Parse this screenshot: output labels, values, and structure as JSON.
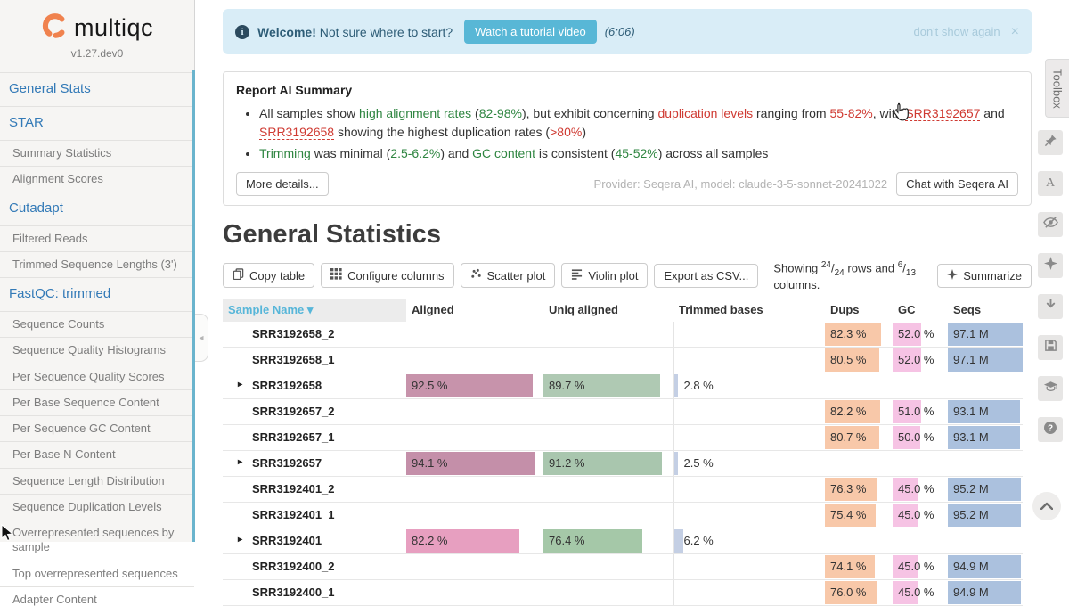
{
  "sidebar": {
    "logo_text": "multiqc",
    "version": "v1.27.dev0",
    "items": [
      {
        "label": "General Stats",
        "type": "section"
      },
      {
        "label": "STAR",
        "type": "section"
      },
      {
        "label": "Summary Statistics",
        "type": "item"
      },
      {
        "label": "Alignment Scores",
        "type": "item"
      },
      {
        "label": "Cutadapt",
        "type": "section"
      },
      {
        "label": "Filtered Reads",
        "type": "item"
      },
      {
        "label": "Trimmed Sequence Lengths (3')",
        "type": "item"
      },
      {
        "label": "FastQC: trimmed",
        "type": "section"
      },
      {
        "label": "Sequence Counts",
        "type": "item"
      },
      {
        "label": "Sequence Quality Histograms",
        "type": "item"
      },
      {
        "label": "Per Sequence Quality Scores",
        "type": "item"
      },
      {
        "label": "Per Base Sequence Content",
        "type": "item"
      },
      {
        "label": "Per Sequence GC Content",
        "type": "item"
      },
      {
        "label": "Per Base N Content",
        "type": "item"
      },
      {
        "label": "Sequence Length Distribution",
        "type": "item"
      },
      {
        "label": "Sequence Duplication Levels",
        "type": "item"
      },
      {
        "label": "Overrepresented sequences by sample",
        "type": "item"
      },
      {
        "label": "Top overrepresented sequences",
        "type": "item"
      },
      {
        "label": "Adapter Content",
        "type": "item"
      }
    ]
  },
  "banner": {
    "welcome_bold": "Welcome!",
    "welcome_text": "Not sure where to start?",
    "tutorial_button": "Watch a tutorial video",
    "duration": "(6:06)",
    "dismiss_label": "don't show again",
    "close_glyph": "×"
  },
  "ai_summary": {
    "title": "Report AI Summary",
    "bullets": [
      {
        "segments": [
          {
            "t": "All samples show ",
            "s": "plain"
          },
          {
            "t": "high alignment rates",
            "s": "green"
          },
          {
            "t": " (",
            "s": "plain"
          },
          {
            "t": "82-98%",
            "s": "green"
          },
          {
            "t": "), but exhibit concerning ",
            "s": "plain"
          },
          {
            "t": "duplication levels",
            "s": "red"
          },
          {
            "t": " ranging from ",
            "s": "plain"
          },
          {
            "t": "55-82%",
            "s": "red"
          },
          {
            "t": ", with ",
            "s": "plain"
          },
          {
            "t": "SRR3192657",
            "s": "link"
          },
          {
            "t": " and ",
            "s": "plain"
          },
          {
            "t": "SRR3192658",
            "s": "link"
          },
          {
            "t": " showing the highest duplication rates (",
            "s": "plain"
          },
          {
            "t": ">80%",
            "s": "red"
          },
          {
            "t": ")",
            "s": "plain"
          }
        ]
      },
      {
        "segments": [
          {
            "t": "Trimming",
            "s": "green"
          },
          {
            "t": " was minimal (",
            "s": "plain"
          },
          {
            "t": "2.5-6.2%",
            "s": "green"
          },
          {
            "t": ") and ",
            "s": "plain"
          },
          {
            "t": "GC content",
            "s": "green"
          },
          {
            "t": " is consistent (",
            "s": "plain"
          },
          {
            "t": "45-52%",
            "s": "green"
          },
          {
            "t": ") across all samples",
            "s": "plain"
          }
        ]
      }
    ],
    "more_button": "More details...",
    "provider_note": "Provider: Seqera AI, model: claude-3-5-sonnet-20241022",
    "chat_button": "Chat with Seqera AI"
  },
  "stats": {
    "title": "General Statistics",
    "toolbar": [
      {
        "label": "Copy table",
        "icon": "copy-icon"
      },
      {
        "label": "Configure columns",
        "icon": "columns-icon"
      },
      {
        "label": "Scatter plot",
        "icon": "scatter-icon"
      },
      {
        "label": "Violin plot",
        "icon": "violin-icon"
      },
      {
        "label": "Export as CSV...",
        "icon": ""
      }
    ],
    "showing": {
      "pre": "Showing",
      "rows_num": "24",
      "rows_den": "24",
      "mid": "rows and",
      "cols_num": "6",
      "cols_den": "13",
      "post": "columns."
    },
    "summarize_button": "Summarize"
  },
  "table": {
    "columns": [
      "Sample Name",
      "Aligned",
      "Uniq aligned",
      "Trimmed bases",
      "Dups",
      "GC",
      "Seqs"
    ],
    "sort_caret": "▾",
    "expand_caret": "▸",
    "fill_colors": {
      "dups": "#f8c8a9",
      "gc": "#f6c3e4",
      "seqs": "#abc1de",
      "trimmed": "#c4cfe4"
    },
    "rows": [
      {
        "name": "SRR3192658_2",
        "group": false,
        "dups": "82.3 %",
        "dups_pct": 82.3,
        "gc": "52.0 %",
        "gc_pct": 52,
        "seqs": "97.1 M",
        "seqs_pct": 100
      },
      {
        "name": "SRR3192658_1",
        "group": false,
        "dups": "80.5 %",
        "dups_pct": 80.5,
        "gc": "52.0 %",
        "gc_pct": 52,
        "seqs": "97.1 M",
        "seqs_pct": 100
      },
      {
        "name": "SRR3192658",
        "group": true,
        "aligned": "92.5 %",
        "aligned_pct": 92.5,
        "aligned_color": "#c793ab",
        "uniq": "89.7 %",
        "uniq_pct": 89.7,
        "uniq_color": "#afc9b3",
        "trimmed": "2.8 %",
        "trimmed_pct": 2.8
      },
      {
        "name": "SRR3192657_2",
        "group": false,
        "dups": "82.2 %",
        "dups_pct": 82.2,
        "gc": "51.0 %",
        "gc_pct": 51,
        "seqs": "93.1 M",
        "seqs_pct": 96
      },
      {
        "name": "SRR3192657_1",
        "group": false,
        "dups": "80.7 %",
        "dups_pct": 80.7,
        "gc": "50.0 %",
        "gc_pct": 50,
        "seqs": "93.1 M",
        "seqs_pct": 96
      },
      {
        "name": "SRR3192657",
        "group": true,
        "aligned": "94.1 %",
        "aligned_pct": 94.1,
        "aligned_color": "#c48fa9",
        "uniq": "91.2 %",
        "uniq_pct": 91.2,
        "uniq_color": "#a9c6ae",
        "trimmed": "2.5 %",
        "trimmed_pct": 2.5
      },
      {
        "name": "SRR3192401_2",
        "group": false,
        "dups": "76.3 %",
        "dups_pct": 76.3,
        "gc": "45.0 %",
        "gc_pct": 45,
        "seqs": "95.2 M",
        "seqs_pct": 98
      },
      {
        "name": "SRR3192401_1",
        "group": false,
        "dups": "75.4 %",
        "dups_pct": 75.4,
        "gc": "45.0 %",
        "gc_pct": 45,
        "seqs": "95.2 M",
        "seqs_pct": 98
      },
      {
        "name": "SRR3192401",
        "group": true,
        "aligned": "82.2 %",
        "aligned_pct": 82.2,
        "aligned_color": "#e79fc0",
        "uniq": "76.4 %",
        "uniq_pct": 76.4,
        "uniq_color": "#a5c8a8",
        "trimmed": "6.2 %",
        "trimmed_pct": 6.2
      },
      {
        "name": "SRR3192400_2",
        "group": false,
        "dups": "74.1 %",
        "dups_pct": 74.1,
        "gc": "45.0 %",
        "gc_pct": 45,
        "seqs": "94.9 M",
        "seqs_pct": 98
      },
      {
        "name": "SRR3192400_1",
        "group": false,
        "dups": "76.0 %",
        "dups_pct": 76,
        "gc": "45.0 %",
        "gc_pct": 45,
        "seqs": "94.9 M",
        "seqs_pct": 98
      }
    ]
  },
  "toolbox": {
    "label": "Toolbox",
    "icons": [
      "pin-icon",
      "highlight-icon",
      "hide-samples-icon",
      "ai-sparkle-icon",
      "download-icon",
      "save-icon",
      "tutorial-icon",
      "help-icon"
    ]
  },
  "colors": {
    "accent_orange": "#f0824e",
    "banner_bg": "#d9edf7",
    "banner_button": "#58b7d6",
    "link_blue": "#337ab7",
    "header_sort_blue": "#57b6d9",
    "green": "#2e8540",
    "red": "#cf3a32"
  }
}
